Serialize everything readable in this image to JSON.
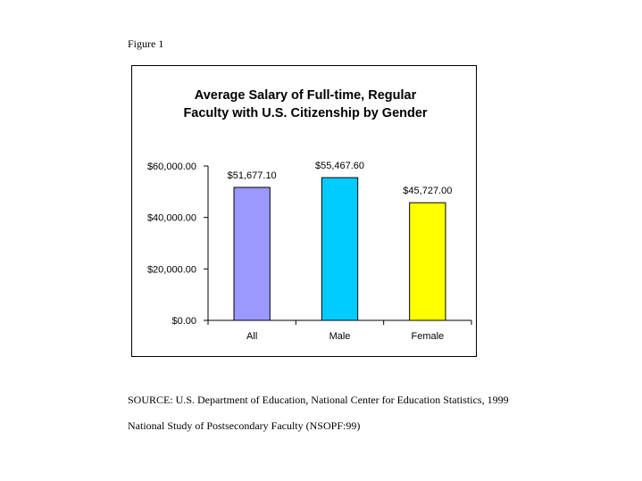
{
  "figure_label": "Figure 1",
  "source": {
    "line1": "SOURCE: U.S. Department of Education, National Center for Education Statistics, 1999",
    "line2": "National Study of Postsecondary Faculty (NSOPF:99)"
  },
  "chart_data": {
    "type": "bar",
    "title": "Average Salary of Full-time, Regular Faculty with U.S. Citizenship by Gender",
    "title_lines": [
      "Average Salary of Full-time, Regular",
      "Faculty with U.S. Citizenship by Gender"
    ],
    "xlabel": "",
    "ylabel": "",
    "categories": [
      "All",
      "Male",
      "Female"
    ],
    "values": [
      51677.1,
      55467.6,
      45727.0
    ],
    "data_labels": [
      "$51,677.10",
      "$55,467.60",
      "$45,727.00"
    ],
    "ylim": [
      0,
      60000
    ],
    "yticks": [
      0,
      20000,
      40000,
      60000
    ],
    "ytick_labels": [
      "$0.00",
      "$20,000.00",
      "$40,000.00",
      "$60,000.00"
    ],
    "bar_colors": [
      "#9999ff",
      "#00ccff",
      "#ffff00"
    ],
    "grid": false,
    "legend": "none"
  }
}
